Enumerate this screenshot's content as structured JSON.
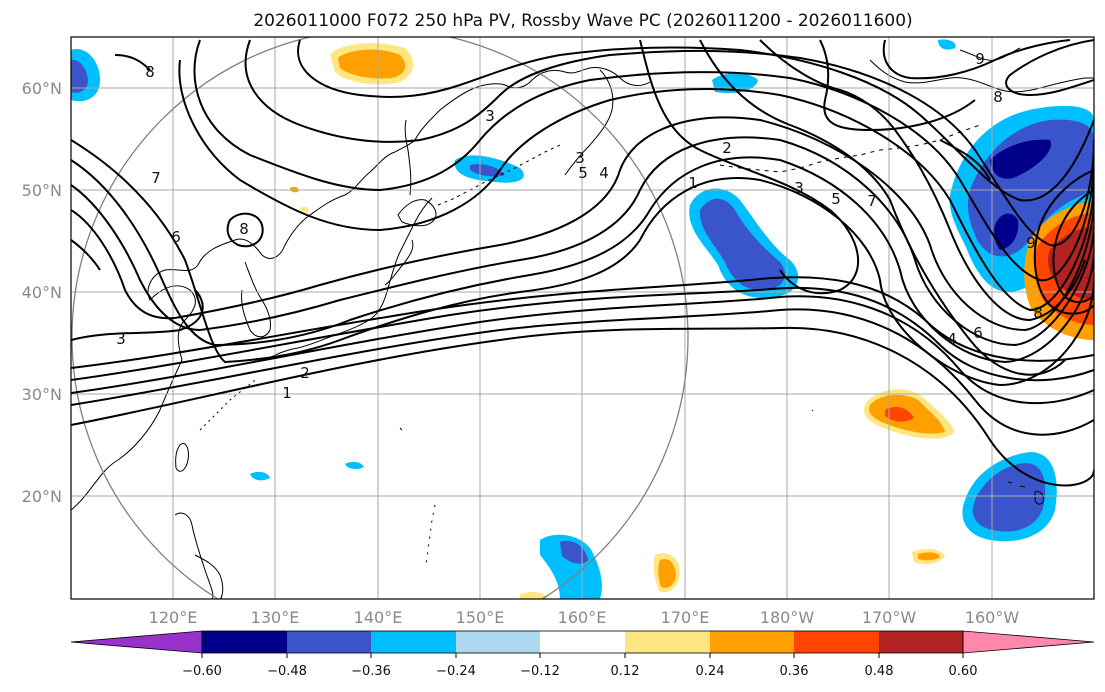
{
  "title": "2026011000 F072 250 hPa PV, Rossby Wave PC (2026011200 - 2026011600)",
  "lat_labels": [
    "60°N",
    "50°N",
    "40°N",
    "30°N",
    "20°N"
  ],
  "lon_labels": [
    "120°E",
    "130°E",
    "140°E",
    "150°E",
    "160°E",
    "170°E",
    "180°W",
    "170°W",
    "160°W"
  ],
  "colorbar": {
    "colors": [
      "#9932cc",
      "#00008b",
      "#3a55cc",
      "#00bfff",
      "#add8f0",
      "#ffffff",
      "#ffffff",
      "#ffe680",
      "#ffa000",
      "#ff4500",
      "#b22222",
      "#ff88aa"
    ],
    "tick_labels": [
      "−0.60",
      "−0.48",
      "−0.36",
      "−0.24",
      "−0.12",
      "0.12",
      "0.24",
      "0.36",
      "0.48",
      "0.60"
    ]
  },
  "contour_labels": [
    "8",
    "7",
    "6",
    "8",
    "3",
    "3",
    "2",
    "1",
    "3",
    "5",
    "4",
    "2",
    "1",
    "3",
    "5",
    "7",
    "9",
    "8",
    "9",
    "8",
    "6",
    "4"
  ],
  "colors": {
    "land": "#000000",
    "grid": "#a9a9a9",
    "contour": "#000000",
    "circle": "#808080"
  }
}
